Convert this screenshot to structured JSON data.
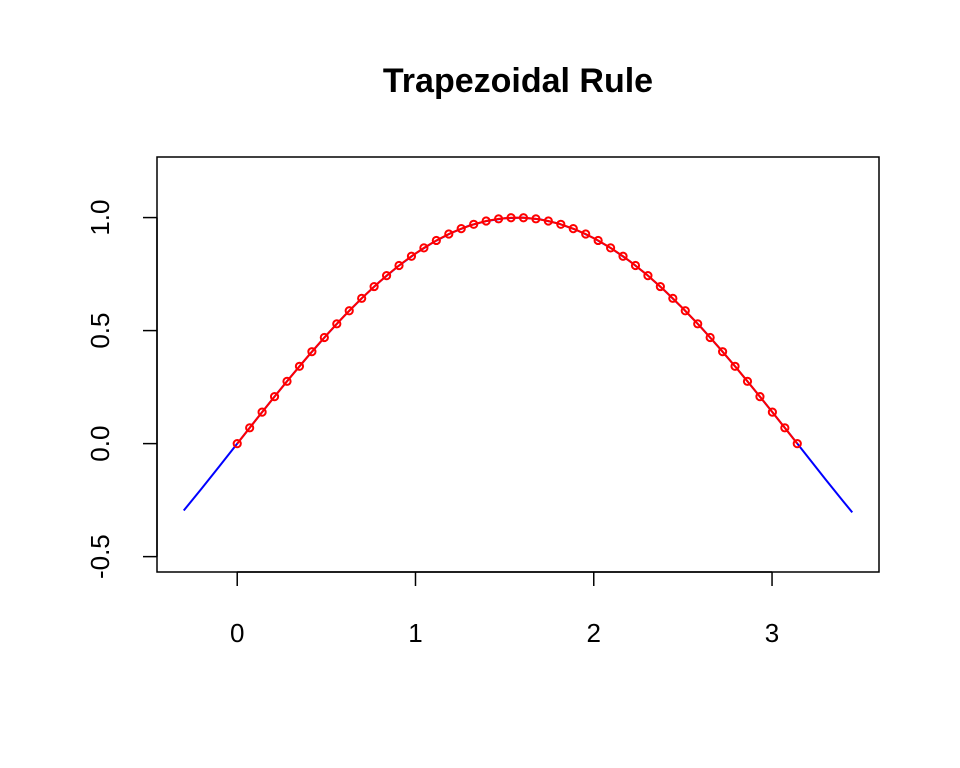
{
  "chart_data": {
    "type": "line",
    "title": "Trapezoidal Rule",
    "xlabel": "",
    "ylabel": "",
    "xlim": [
      -0.3,
      3.45
    ],
    "ylim": [
      -0.5,
      1.2
    ],
    "x_ticks": [
      0,
      1,
      2,
      3
    ],
    "x_tick_labels": [
      "0",
      "1",
      "2",
      "3"
    ],
    "y_ticks": [
      -0.5,
      0.0,
      0.5,
      1.0
    ],
    "y_tick_labels": [
      "-0.5",
      "0.0",
      "0.5",
      "1.0"
    ],
    "grid": false,
    "series": [
      {
        "role": "curve",
        "color": "#0000ff",
        "x": [
          -0.3,
          -0.2,
          -0.1,
          0,
          0.1,
          0.2,
          0.3,
          0.4,
          0.5,
          0.6,
          0.7,
          0.8,
          0.9,
          1.0,
          1.1,
          1.2,
          1.3,
          1.4,
          1.5,
          1.6,
          1.7,
          1.8,
          1.9,
          2.0,
          2.1,
          2.2,
          2.3,
          2.4,
          2.5,
          2.6,
          2.7,
          2.8,
          2.9,
          3.0,
          3.1,
          3.2,
          3.3,
          3.4,
          3.45
        ],
        "y": [
          -0.296,
          -0.199,
          -0.1,
          0.0,
          0.1,
          0.199,
          0.296,
          0.389,
          0.479,
          0.565,
          0.644,
          0.717,
          0.783,
          0.841,
          0.891,
          0.932,
          0.964,
          0.985,
          0.997,
          1.0,
          0.992,
          0.974,
          0.946,
          0.909,
          0.863,
          0.808,
          0.746,
          0.675,
          0.598,
          0.516,
          0.427,
          0.335,
          0.239,
          0.141,
          0.042,
          -0.058,
          -0.158,
          -0.256,
          -0.304
        ]
      },
      {
        "role": "trapezoid-points",
        "color": "#ff0000",
        "x": [
          0,
          0.0698,
          0.1396,
          0.2094,
          0.2793,
          0.3491,
          0.4189,
          0.4887,
          0.5585,
          0.6283,
          0.6981,
          0.7679,
          0.8378,
          0.9076,
          0.9774,
          1.0472,
          1.117,
          1.1868,
          1.2566,
          1.3265,
          1.3963,
          1.4661,
          1.5359,
          1.6057,
          1.6755,
          1.7453,
          1.8151,
          1.885,
          1.9548,
          2.0246,
          2.0944,
          2.1642,
          2.234,
          2.3038,
          2.3736,
          2.4435,
          2.5133,
          2.5831,
          2.6529,
          2.7227,
          2.7925,
          2.8623,
          2.9322,
          3.002,
          3.0718,
          3.1416
        ],
        "y": [
          0.0,
          0.0698,
          0.1392,
          0.2079,
          0.2756,
          0.342,
          0.4067,
          0.4695,
          0.5299,
          0.5878,
          0.6428,
          0.6947,
          0.7431,
          0.788,
          0.829,
          0.866,
          0.8988,
          0.9272,
          0.9511,
          0.9703,
          0.9848,
          0.9945,
          0.9994,
          0.9994,
          0.9945,
          0.9848,
          0.9703,
          0.9511,
          0.9272,
          0.8988,
          0.866,
          0.829,
          0.788,
          0.7431,
          0.6947,
          0.6428,
          0.5878,
          0.5299,
          0.4695,
          0.4067,
          0.342,
          0.2756,
          0.2079,
          0.1392,
          0.0698,
          0.0
        ]
      }
    ]
  }
}
